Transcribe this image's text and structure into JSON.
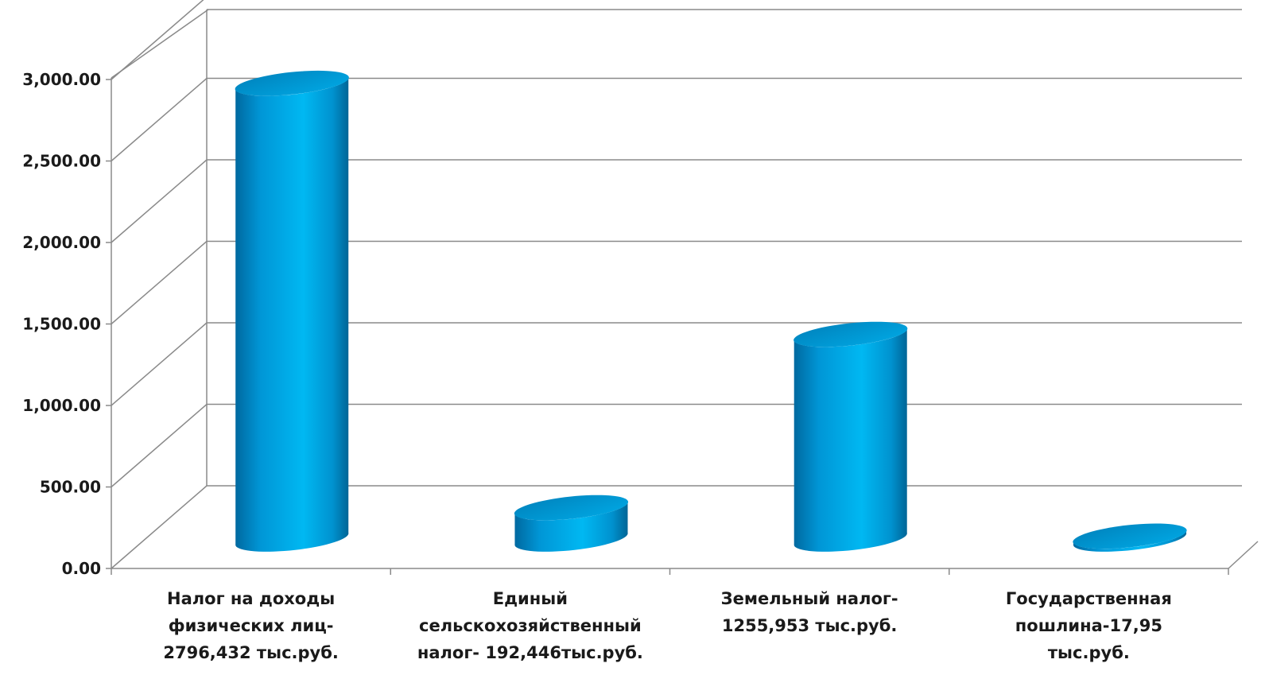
{
  "chart_data": {
    "type": "bar",
    "style": "3d-cylinder",
    "categories": [
      "Налог на доходы физических лиц- 2796,432 тыс.руб.",
      "Единый сельскохозяйственный налог- 192,446тыс.руб.",
      "Земельный налог- 1255,953 тыс.руб.",
      "Государственная пошлина-17,95 тыс.руб."
    ],
    "category_lines": [
      [
        "Налог на доходы",
        "физических лиц-",
        "2796,432 тыс.руб."
      ],
      [
        "Единый",
        "сельскохозяйственный",
        "налог- 192,446тыс.руб."
      ],
      [
        "Земельный налог-",
        "1255,953 тыс.руб."
      ],
      [
        "Государственная",
        "пошлина-17,95",
        "тыс.руб."
      ]
    ],
    "series": [
      {
        "values": [
          2796.432,
          192.446,
          1255.953,
          17.95
        ],
        "color": "#00a6e8"
      }
    ],
    "ylim": [
      0,
      3000
    ],
    "yticks": [
      "0.00",
      "500.00",
      "1,000.00",
      "1,500.00",
      "2,000.00",
      "2,500.00",
      "3,000.00"
    ],
    "grid": true,
    "legend": "none",
    "title": "",
    "xlabel": "",
    "ylabel": ""
  }
}
